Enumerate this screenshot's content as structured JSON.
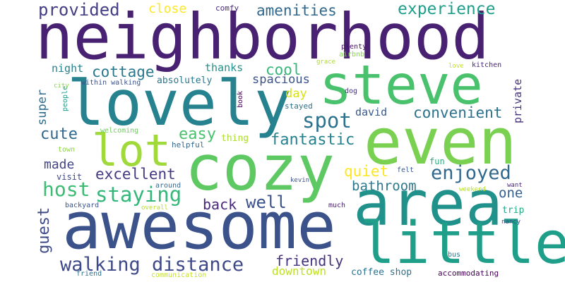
{
  "words": [
    {
      "text": "neighborhood",
      "color": "#482173"
    },
    {
      "text": "awesome",
      "color": "#3b528b"
    },
    {
      "text": "cozy",
      "color": "#5ec962"
    },
    {
      "text": "steve",
      "color": "#4ac16d"
    },
    {
      "text": "lovely",
      "color": "#26828e"
    },
    {
      "text": "even",
      "color": "#7ad151"
    },
    {
      "text": "area",
      "color": "#21918c"
    },
    {
      "text": "little",
      "color": "#1f9e89"
    },
    {
      "text": "lot",
      "color": "#9fda3a"
    },
    {
      "text": "walking distance",
      "color": "#3e4989"
    },
    {
      "text": "provided",
      "color": "#433e85"
    },
    {
      "text": "amenities",
      "color": "#31688e"
    },
    {
      "text": "experience",
      "color": "#1f9e89"
    },
    {
      "text": "close",
      "color": "#fde725"
    },
    {
      "text": "comfy",
      "color": "#482878"
    },
    {
      "text": "staying",
      "color": "#35b779"
    },
    {
      "text": "host",
      "color": "#3dbc74"
    },
    {
      "text": "spot",
      "color": "#2c728e"
    },
    {
      "text": "enjoyed",
      "color": "#31688e"
    },
    {
      "text": "fantastic",
      "color": "#26828e"
    },
    {
      "text": "convenient",
      "color": "#2c728e"
    },
    {
      "text": "excellent",
      "color": "#443983"
    },
    {
      "text": "cottage",
      "color": "#2a788e"
    },
    {
      "text": "cool",
      "color": "#35b779"
    },
    {
      "text": "bathroom",
      "color": "#2a788e"
    },
    {
      "text": "cute",
      "color": "#31688e"
    },
    {
      "text": "easy",
      "color": "#4ac16d"
    },
    {
      "text": "quiet",
      "color": "#fde725"
    },
    {
      "text": "back",
      "color": "#482878"
    },
    {
      "text": "well",
      "color": "#3b528b"
    },
    {
      "text": "friendly",
      "color": "#46337e"
    },
    {
      "text": "downtown",
      "color": "#bddf26"
    },
    {
      "text": "made",
      "color": "#414487"
    },
    {
      "text": "super",
      "color": "#2f6c8e"
    },
    {
      "text": "guest",
      "color": "#3e4989"
    },
    {
      "text": "one",
      "color": "#355f8d"
    },
    {
      "text": "spacious",
      "color": "#3b528b"
    },
    {
      "text": "night",
      "color": "#26828e"
    },
    {
      "text": "thanks",
      "color": "#21918c"
    },
    {
      "text": "absolutely",
      "color": "#2a788e"
    },
    {
      "text": "day",
      "color": "#d8e219"
    },
    {
      "text": "david",
      "color": "#38598c"
    },
    {
      "text": "private",
      "color": "#46337e"
    },
    {
      "text": "thing",
      "color": "#addc30"
    },
    {
      "text": "coffee shop",
      "color": "#2c728e"
    },
    {
      "text": "accommodating",
      "color": "#440154"
    },
    {
      "text": "trip",
      "color": "#22a884"
    },
    {
      "text": "fun",
      "color": "#28ae80"
    },
    {
      "text": "visit",
      "color": "#3e4989"
    },
    {
      "text": "helpful",
      "color": "#31688e"
    },
    {
      "text": "welcoming",
      "color": "#6ccd5a"
    },
    {
      "text": "town",
      "color": "#8fd744"
    },
    {
      "text": "within walking",
      "color": "#3b528b"
    },
    {
      "text": "people",
      "color": "#1f9e89"
    },
    {
      "text": "city",
      "color": "#86d549"
    },
    {
      "text": "book",
      "color": "#440154"
    },
    {
      "text": "stayed",
      "color": "#2c728e"
    },
    {
      "text": "dog",
      "color": "#46337e"
    },
    {
      "text": "plenty",
      "color": "#471063"
    },
    {
      "text": "airbnb",
      "color": "#86d549"
    },
    {
      "text": "grace",
      "color": "#addc30"
    },
    {
      "text": "kitchen",
      "color": "#482878"
    },
    {
      "text": "love",
      "color": "#c2df23"
    },
    {
      "text": "felt",
      "color": "#38598c"
    },
    {
      "text": "kevin",
      "color": "#3b528b"
    },
    {
      "text": "want",
      "color": "#482878"
    },
    {
      "text": "weekend",
      "color": "#b5de2b"
    },
    {
      "text": "nancy",
      "color": "#3e4989"
    },
    {
      "text": "bus",
      "color": "#2a788e"
    },
    {
      "text": "much",
      "color": "#481f70"
    },
    {
      "text": "around",
      "color": "#31688e"
    },
    {
      "text": "overall",
      "color": "#b5de2b"
    },
    {
      "text": "backyard",
      "color": "#3b528b"
    },
    {
      "text": "friend",
      "color": "#2c728e"
    },
    {
      "text": "communication",
      "color": "#c8e020"
    }
  ]
}
